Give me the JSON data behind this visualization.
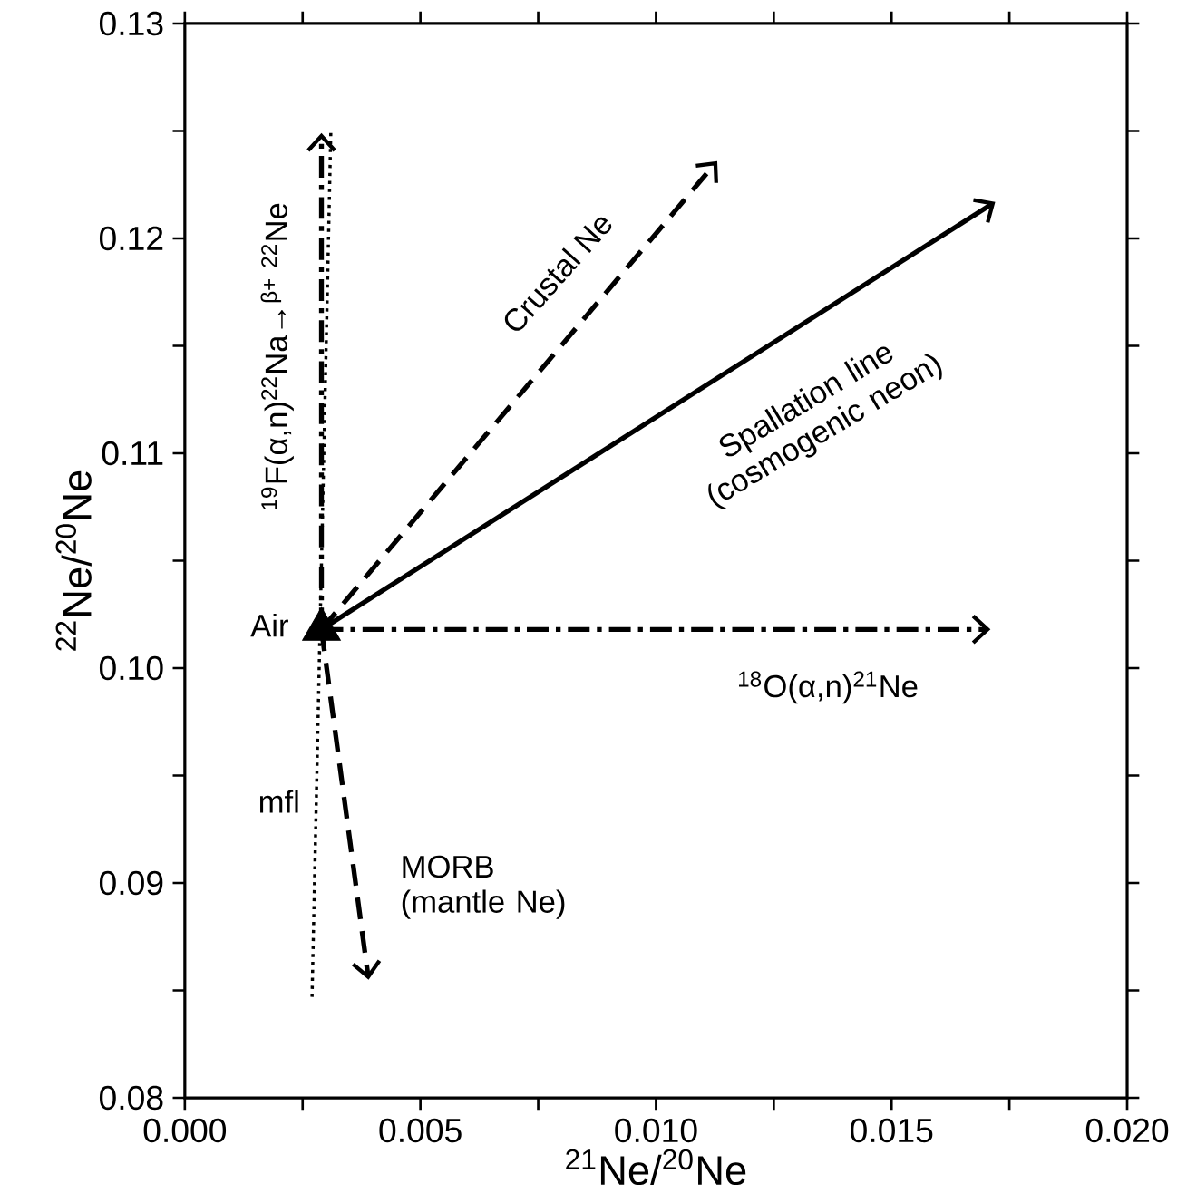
{
  "chart_data": {
    "type": "line",
    "xlabel": "$^{21}$Ne/$^{20}$Ne",
    "ylabel": "$^{22}$Ne/$^{20}$Ne",
    "xlim": [
      0,
      0.02
    ],
    "ylim": [
      0.08,
      0.13
    ],
    "xticks": [
      {
        "value": 0,
        "label": "0.000"
      },
      {
        "value": 0.0025,
        "label": null
      },
      {
        "value": 0.005,
        "label": "0.005"
      },
      {
        "value": 0.0075,
        "label": null
      },
      {
        "value": 0.01,
        "label": "0.010"
      },
      {
        "value": 0.0125,
        "label": null
      },
      {
        "value": 0.015,
        "label": "0.015"
      },
      {
        "value": 0.0175,
        "label": null
      },
      {
        "value": 0.02,
        "label": "0.020"
      }
    ],
    "yticks": [
      {
        "value": 0.08,
        "label": "0.08"
      },
      {
        "value": 0.085,
        "label": null
      },
      {
        "value": 0.09,
        "label": "0.09"
      },
      {
        "value": 0.095,
        "label": null
      },
      {
        "value": 0.1,
        "label": "0.10"
      },
      {
        "value": 0.105,
        "label": null
      },
      {
        "value": 0.11,
        "label": "0.11"
      },
      {
        "value": 0.115,
        "label": null
      },
      {
        "value": 0.12,
        "label": "0.12"
      },
      {
        "value": 0.125,
        "label": null
      },
      {
        "value": 0.13,
        "label": "0.13"
      }
    ],
    "series": [
      {
        "line_style": "dotted",
        "color": "#000000",
        "x": [
          0.0027,
          0.0031
        ],
        "values": [
          0.0847,
          0.1251
        ]
      },
      {
        "type": "scatter",
        "marker": "triangle",
        "color": "#000000",
        "x": [
          0.0029
        ],
        "values": [
          0.1018
        ]
      }
    ],
    "annotations": [
      "Air",
      "mfl",
      "MORB (mantle Ne)",
      "Crustal Ne",
      "Spallation line (cosmogenic neon)",
      "$^{18}$O(α,n)$^{21}$Ne",
      "$^{19}$F(α,n)$^{22}$Na→$^{β+}$ $^{22}$Ne"
    ]
  }
}
